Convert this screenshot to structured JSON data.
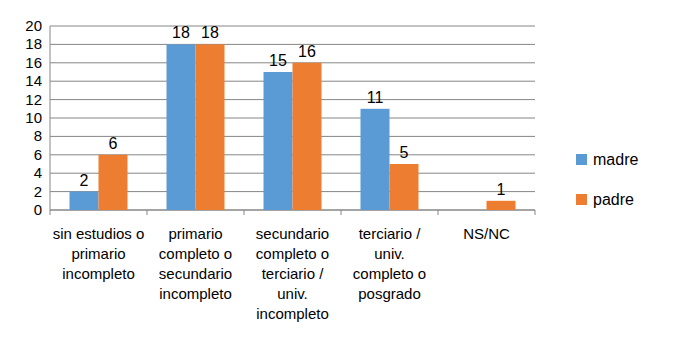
{
  "chart_data": {
    "type": "bar",
    "categories": [
      "sin estudios o primario incompleto",
      "primario completo o secundario incompleto",
      "secundario completo o terciario / univ. incompleto",
      "terciario / univ. completo o posgrado",
      "NS/NC"
    ],
    "series": [
      {
        "name": "madre",
        "color": "#5b9bd5",
        "values": [
          2,
          18,
          15,
          11,
          null
        ]
      },
      {
        "name": "padre",
        "color": "#ed7d31",
        "values": [
          6,
          18,
          16,
          5,
          1
        ]
      }
    ],
    "ylim": [
      0,
      20
    ],
    "yticks": [
      0,
      2,
      4,
      6,
      8,
      10,
      12,
      14,
      16,
      18,
      20
    ],
    "grid": true,
    "legend": "right",
    "data_labels": true
  }
}
